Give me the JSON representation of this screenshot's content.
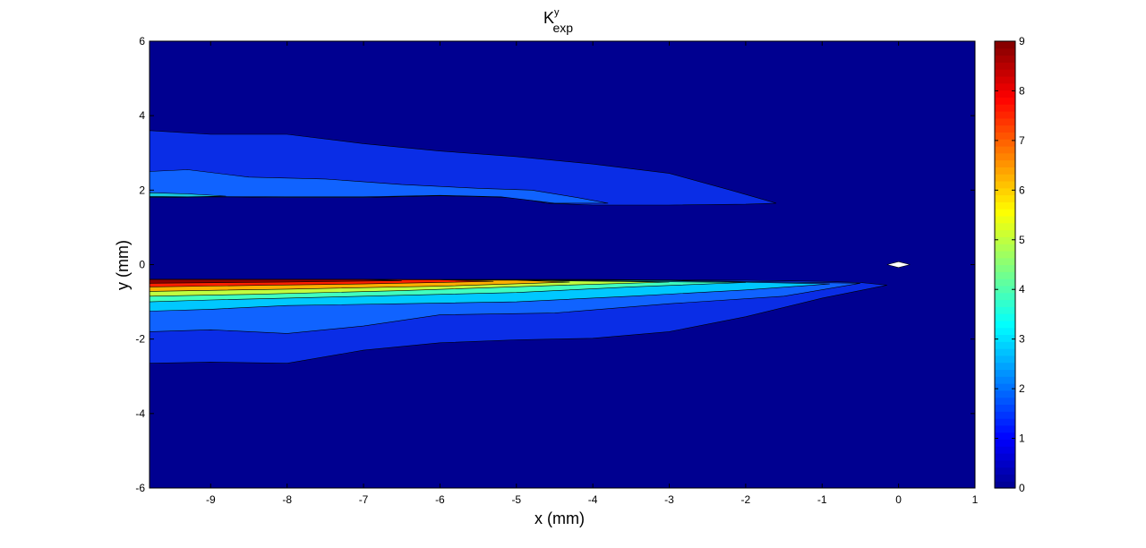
{
  "chart_data": {
    "type": "contour",
    "title": "K",
    "title_superscript": "y",
    "title_subscript": "exp",
    "xlabel": "x (mm)",
    "ylabel": "y (mm)",
    "xlim": [
      -9.8,
      1
    ],
    "ylim": [
      -6,
      6
    ],
    "x_ticks": [
      "-9",
      "-8",
      "-7",
      "-6",
      "-5",
      "-4",
      "-3",
      "-2",
      "-1",
      "0",
      "1"
    ],
    "x_tick_values": [
      -9,
      -8,
      -7,
      -6,
      -5,
      -4,
      -3,
      -2,
      -1,
      0,
      1
    ],
    "y_ticks": [
      "-6",
      "-4",
      "-2",
      "0",
      "2",
      "4",
      "6"
    ],
    "y_tick_values": [
      -6,
      -4,
      -2,
      0,
      2,
      4,
      6
    ],
    "background_level": 0,
    "colormap": "jet",
    "colorbar": {
      "range": [
        0,
        9
      ],
      "ticks": [
        "0",
        "1",
        "2",
        "3",
        "4",
        "5",
        "6",
        "7",
        "8",
        "9"
      ],
      "tick_values": [
        0,
        1,
        2,
        3,
        4,
        5,
        6,
        7,
        8,
        9
      ],
      "colors": [
        "#00008f",
        "#0000ff",
        "#0080ff",
        "#00ffff",
        "#80ff80",
        "#ffff00",
        "#ff8000",
        "#ff0000",
        "#800000"
      ]
    },
    "regions": [
      {
        "name": "upper-plume",
        "level": 1,
        "color": "#0a2de6",
        "points": [
          [
            -9.8,
            3.6
          ],
          [
            -9,
            3.5
          ],
          [
            -8,
            3.5
          ],
          [
            -7,
            3.25
          ],
          [
            -6,
            3.05
          ],
          [
            -5,
            2.9
          ],
          [
            -4,
            2.7
          ],
          [
            -3,
            2.45
          ],
          [
            -2.2,
            2.0
          ],
          [
            -1.6,
            1.65
          ],
          [
            -2,
            1.62
          ],
          [
            -3,
            1.6
          ],
          [
            -4,
            1.6
          ],
          [
            -4.6,
            1.65
          ],
          [
            -5,
            1.8
          ],
          [
            -6,
            1.85
          ],
          [
            -7,
            1.8
          ],
          [
            -8,
            1.8
          ],
          [
            -9,
            1.82
          ],
          [
            -9.8,
            1.8
          ]
        ]
      },
      {
        "name": "upper-plume-core",
        "level": 2,
        "color": "#1063ff",
        "points": [
          [
            -9.8,
            2.5
          ],
          [
            -9.3,
            2.55
          ],
          [
            -8.5,
            2.35
          ],
          [
            -7.5,
            2.3
          ],
          [
            -6.5,
            2.15
          ],
          [
            -5.5,
            2.05
          ],
          [
            -4.8,
            2.0
          ],
          [
            -4.2,
            1.8
          ],
          [
            -3.8,
            1.65
          ],
          [
            -4.5,
            1.65
          ],
          [
            -5.2,
            1.82
          ],
          [
            -6,
            1.86
          ],
          [
            -7,
            1.82
          ],
          [
            -8,
            1.82
          ],
          [
            -9,
            1.83
          ],
          [
            -9.8,
            1.82
          ]
        ]
      },
      {
        "name": "upper-plume-tip",
        "level": 3,
        "color": "#18c8e0",
        "points": [
          [
            -9.8,
            1.93
          ],
          [
            -9.3,
            1.9
          ],
          [
            -8.8,
            1.84
          ],
          [
            -9.3,
            1.82
          ],
          [
            -9.8,
            1.83
          ]
        ]
      },
      {
        "name": "lower-plume",
        "level": 1,
        "color": "#0a2de6",
        "points": [
          [
            -9.8,
            -0.4
          ],
          [
            -7,
            -0.4
          ],
          [
            -4,
            -0.4
          ],
          [
            -2,
            -0.42
          ],
          [
            -1,
            -0.45
          ],
          [
            -0.5,
            -0.48
          ],
          [
            -0.15,
            -0.55
          ],
          [
            -1,
            -0.9
          ],
          [
            -2,
            -1.4
          ],
          [
            -3,
            -1.8
          ],
          [
            -4,
            -1.98
          ],
          [
            -5,
            -2.02
          ],
          [
            -6,
            -2.1
          ],
          [
            -7,
            -2.3
          ],
          [
            -8,
            -2.65
          ],
          [
            -9,
            -2.62
          ],
          [
            -9.8,
            -2.65
          ]
        ]
      },
      {
        "name": "lower-plume-l2",
        "level": 2,
        "color": "#1063ff",
        "points": [
          [
            -9.8,
            -0.4
          ],
          [
            -7,
            -0.4
          ],
          [
            -3,
            -0.42
          ],
          [
            -0.5,
            -0.5
          ],
          [
            -1.5,
            -0.85
          ],
          [
            -3,
            -1.05
          ],
          [
            -4.5,
            -1.3
          ],
          [
            -6,
            -1.35
          ],
          [
            -7,
            -1.65
          ],
          [
            -8,
            -1.85
          ],
          [
            -9,
            -1.75
          ],
          [
            -9.8,
            -1.8
          ]
        ]
      },
      {
        "name": "lower-plume-l3",
        "level": 3,
        "color": "#00c8ff",
        "points": [
          [
            -9.8,
            -0.4
          ],
          [
            -7,
            -0.4
          ],
          [
            -3,
            -0.43
          ],
          [
            -0.9,
            -0.52
          ],
          [
            -2,
            -0.68
          ],
          [
            -3.5,
            -0.85
          ],
          [
            -5,
            -1.0
          ],
          [
            -6.5,
            -1.05
          ],
          [
            -8,
            -1.1
          ],
          [
            -9,
            -1.2
          ],
          [
            -9.8,
            -1.25
          ]
        ]
      },
      {
        "name": "lower-plume-l4",
        "level": 4,
        "color": "#40ffc0",
        "points": [
          [
            -9.8,
            -0.4
          ],
          [
            -5,
            -0.42
          ],
          [
            -2,
            -0.48
          ],
          [
            -3.5,
            -0.6
          ],
          [
            -5,
            -0.75
          ],
          [
            -7,
            -0.85
          ],
          [
            -9,
            -0.95
          ],
          [
            -9.8,
            -1.0
          ]
        ]
      },
      {
        "name": "lower-plume-l5",
        "level": 5,
        "color": "#c0ff40",
        "points": [
          [
            -9.8,
            -0.4
          ],
          [
            -5,
            -0.42
          ],
          [
            -3,
            -0.47
          ],
          [
            -4.5,
            -0.56
          ],
          [
            -6.5,
            -0.7
          ],
          [
            -8.5,
            -0.8
          ],
          [
            -9.8,
            -0.85
          ]
        ]
      },
      {
        "name": "lower-plume-l6",
        "level": 6,
        "color": "#ffb000",
        "points": [
          [
            -9.8,
            -0.4
          ],
          [
            -5,
            -0.42
          ],
          [
            -4.3,
            -0.47
          ],
          [
            -6,
            -0.58
          ],
          [
            -8,
            -0.66
          ],
          [
            -9.8,
            -0.72
          ]
        ]
      },
      {
        "name": "lower-plume-l7",
        "level": 7,
        "color": "#ff2000",
        "points": [
          [
            -9.8,
            -0.4
          ],
          [
            -6,
            -0.41
          ],
          [
            -5.3,
            -0.45
          ],
          [
            -7,
            -0.52
          ],
          [
            -8.5,
            -0.56
          ],
          [
            -9.8,
            -0.6
          ]
        ]
      },
      {
        "name": "lower-plume-l8",
        "level": 8,
        "color": "#8a0000",
        "points": [
          [
            -9.8,
            -0.4
          ],
          [
            -7,
            -0.4
          ],
          [
            -6.5,
            -0.43
          ],
          [
            -8,
            -0.47
          ],
          [
            -9.8,
            -0.5
          ]
        ]
      }
    ],
    "marker": {
      "name": "white-diamond-marker",
      "color": "#ffffff",
      "points": [
        [
          0,
          0.08
        ],
        [
          0.15,
          0
        ],
        [
          0,
          -0.08
        ],
        [
          -0.15,
          0
        ]
      ]
    }
  }
}
